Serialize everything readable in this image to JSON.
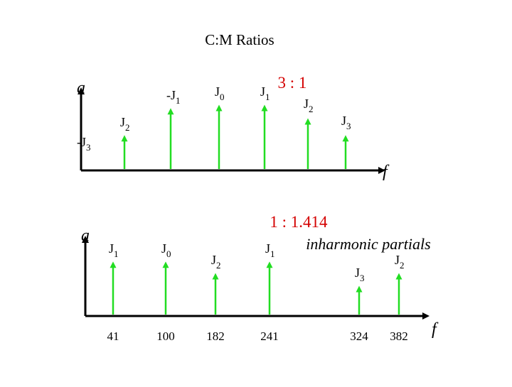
{
  "title": "C:M Ratios",
  "colors": {
    "partial": "#22dd22",
    "ratio": "#d40000",
    "axis": "#000000"
  },
  "top_panel": {
    "ratio_label": "3 : 1",
    "y_axis_label": "a",
    "x_axis_label": "f",
    "partials": [
      {
        "prefix": "-J",
        "sub": "3",
        "amplitude": 0
      },
      {
        "prefix": "J",
        "sub": "2",
        "amplitude": 0.55
      },
      {
        "prefix": "-J",
        "sub": "1",
        "amplitude": 0.95
      },
      {
        "prefix": "J",
        "sub": "0",
        "amplitude": 1.0
      },
      {
        "prefix": "J",
        "sub": "1",
        "amplitude": 1.0
      },
      {
        "prefix": "J",
        "sub": "2",
        "amplitude": 0.8
      },
      {
        "prefix": "J",
        "sub": "3",
        "amplitude": 0.55
      }
    ]
  },
  "bottom_panel": {
    "ratio_label": "1 : 1.414",
    "note": "inharmonic partials",
    "y_axis_label": "a",
    "x_axis_label": "f",
    "partials": [
      {
        "prefix": "J",
        "sub": "1",
        "freq": "41",
        "amplitude": 0.88
      },
      {
        "prefix": "J",
        "sub": "0",
        "freq": "100",
        "amplitude": 0.88
      },
      {
        "prefix": "J",
        "sub": "2",
        "freq": "182",
        "amplitude": 0.7
      },
      {
        "prefix": "J",
        "sub": "1",
        "freq": "241",
        "amplitude": 0.88
      },
      {
        "prefix": "J",
        "sub": "3",
        "freq": "324",
        "amplitude": 0.5
      },
      {
        "prefix": "J",
        "sub": "2",
        "freq": "382",
        "amplitude": 0.7
      }
    ]
  }
}
